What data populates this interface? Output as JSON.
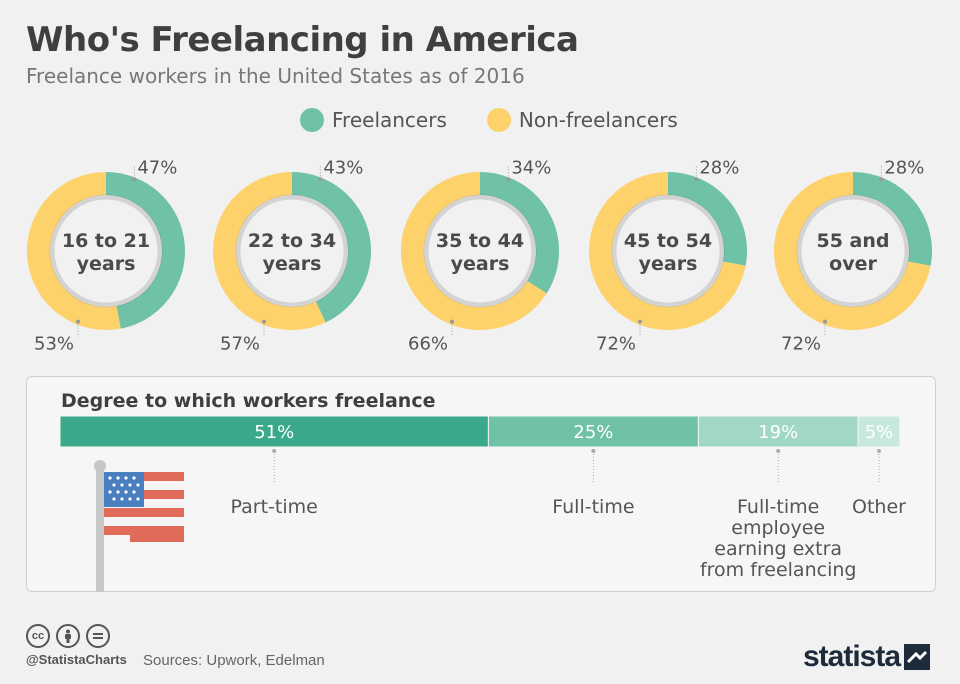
{
  "title": "Who's Freelancing in America",
  "subtitle": "Freelance workers in the United States as of 2016",
  "legend": [
    {
      "label": "Freelancers",
      "color": "#6fc1a8"
    },
    {
      "label": "Non-freelancers",
      "color": "#fdd26b"
    }
  ],
  "chart_data": [
    {
      "type": "pie",
      "variant": "donut-small-multiples",
      "series_names": [
        "Freelancers",
        "Non-freelancers"
      ],
      "colors": [
        "#6fc1a8",
        "#fdd26b"
      ],
      "categories": [
        "16 to 21 years",
        "22 to 34 years",
        "35 to 44 years",
        "45 to 54 years",
        "55 and over"
      ],
      "center_labels": [
        [
          "16 to 21",
          "years"
        ],
        [
          "22 to 34",
          "years"
        ],
        [
          "35 to 44",
          "years"
        ],
        [
          "45 to 54",
          "years"
        ],
        [
          "55 and",
          "over"
        ]
      ],
      "freelancers": [
        47,
        43,
        34,
        28,
        28
      ],
      "non_freelancers": [
        53,
        57,
        66,
        72,
        72
      ],
      "freelancer_labels": [
        "47%",
        "43%",
        "34%",
        "28%",
        "28%"
      ],
      "non_freelancer_labels": [
        "53%",
        "57%",
        "66%",
        "72%",
        "72%"
      ]
    },
    {
      "type": "bar",
      "variant": "stacked-100",
      "title": "Degree to which workers freelance",
      "categories": [
        "Part-time",
        "Full-time",
        "Full-time employee earning extra from freelancing",
        "Other"
      ],
      "category_lines": [
        [
          "Part-time"
        ],
        [
          "Full-time"
        ],
        [
          "Full-time",
          "employee",
          "earning extra",
          "from freelancing"
        ],
        [
          "Other"
        ]
      ],
      "values": [
        51,
        25,
        19,
        5
      ],
      "value_labels": [
        "51%",
        "25%",
        "19%",
        "5%"
      ],
      "colors": [
        "#3aa98b",
        "#6fc1a8",
        "#a0d7c6",
        "#c8e8dd"
      ]
    }
  ],
  "footer": {
    "handle": "@StatistaCharts",
    "sources": "Sources: Upwork, Edelman",
    "brand": "statista",
    "cc_icons": [
      "cc-icon",
      "by-icon",
      "nd-icon"
    ]
  }
}
